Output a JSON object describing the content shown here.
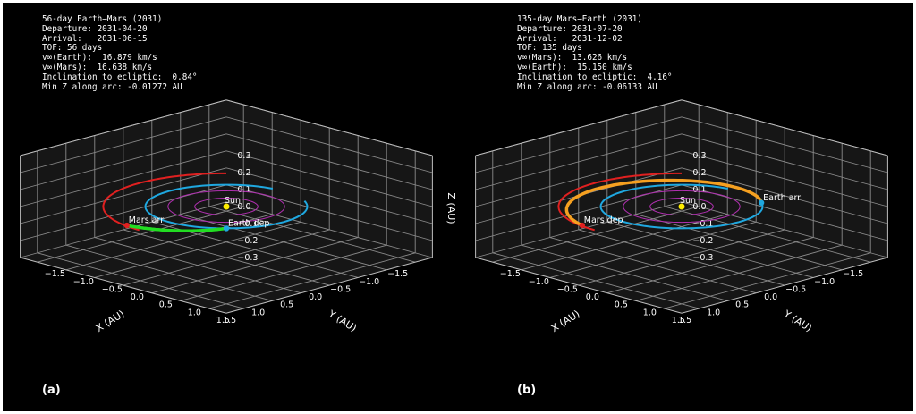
{
  "chart_data": [
    {
      "type": "line",
      "panel_label": "(a)",
      "info_lines": [
        "56-day Earth→Mars (2031)",
        "Departure: 2031-04-20",
        "Arrival:   2031-06-15",
        "TOF: 56 days",
        "v∞(Earth):  16.879 km/s",
        "v∞(Mars):  16.638 km/s",
        "Inclination to ecliptic:  0.84°",
        "Min Z along arc: -0.01272 AU"
      ],
      "xlabel": "X (AU)",
      "ylabel": "Y (AU)",
      "zlabel": "Z (AU)",
      "xlim": [
        -1.8,
        1.8
      ],
      "ylim": [
        -1.8,
        1.8
      ],
      "zlim": [
        -0.3,
        0.3
      ],
      "x_ticks": [
        "−1.5",
        "−1.0",
        "−0.5",
        "0.0",
        "0.5",
        "1.0",
        "1.5"
      ],
      "y_ticks": [
        "−1.5",
        "−1.0",
        "−0.5",
        "0.0",
        "0.5",
        "1.0",
        "1.5"
      ],
      "z_ticks": [
        "0.3",
        "0.2",
        "0.1",
        "0.0",
        "−0.1",
        "−0.2",
        "−0.3"
      ],
      "show_zlabel": true,
      "grid": true,
      "rings": [
        {
          "name": "ring-inner",
          "radius": 0.39,
          "color": "#b030b0"
        },
        {
          "name": "ring-outer",
          "radius": 0.72,
          "color": "#b030b0"
        }
      ],
      "sun": {
        "label": "Sun",
        "x": 0,
        "y": 0,
        "z": 0,
        "color": "#ffee00"
      },
      "earth_orbit": {
        "color": "#1fa8e0",
        "radius": 1.0,
        "start_deg": -60,
        "end_deg": 260
      },
      "mars_orbit": {
        "color": "#e02020",
        "radius": 1.52,
        "start_deg": 90,
        "end_deg": 225
      },
      "transfer_arc": {
        "color": "#22dd22",
        "start_deg": 45,
        "end_deg": 100,
        "r_start": 1.0,
        "r_end": 1.5
      },
      "markers": [
        {
          "label": "Earth dep",
          "deg": 45,
          "r": 1.0,
          "color": "#1fa8e0"
        },
        {
          "label": "Mars arr",
          "deg": 100,
          "r": 1.5,
          "color": "#e02020"
        }
      ]
    },
    {
      "type": "line",
      "panel_label": "(b)",
      "info_lines": [
        "135-day Mars→Earth (2031)",
        "Departure: 2031-07-20",
        "Arrival:   2031-12-02",
        "TOF: 135 days",
        "v∞(Mars):  13.626 km/s",
        "v∞(Earth):  15.150 km/s",
        "Inclination to ecliptic:  4.16°",
        "Min Z along arc: -0.06133 AU"
      ],
      "xlabel": "X (AU)",
      "ylabel": "Y (AU)",
      "zlabel": "",
      "xlim": [
        -1.8,
        1.8
      ],
      "ylim": [
        -1.8,
        1.8
      ],
      "zlim": [
        -0.3,
        0.3
      ],
      "x_ticks": [
        "−1.5",
        "−1.0",
        "−0.5",
        "0.0",
        "0.5",
        "1.0",
        "1.5"
      ],
      "y_ticks": [
        "−1.5",
        "−1.0",
        "−0.5",
        "0.0",
        "0.5",
        "1.0",
        "1.5"
      ],
      "z_ticks": [
        "0.3",
        "0.2",
        "0.1",
        "0.0",
        "−0.1",
        "−0.2",
        "−0.3"
      ],
      "show_zlabel": false,
      "grid": true,
      "rings": [
        {
          "name": "ring-inner",
          "radius": 0.39,
          "color": "#b030b0"
        },
        {
          "name": "ring-outer",
          "radius": 0.72,
          "color": "#b030b0"
        }
      ],
      "sun": {
        "label": "Sun",
        "x": 0,
        "y": 0,
        "z": 0,
        "color": "#ffee00"
      },
      "earth_orbit": {
        "color": "#1fa8e0",
        "radius": 1.0,
        "start_deg": -60,
        "end_deg": 260
      },
      "mars_orbit": {
        "color": "#e02020",
        "radius": 1.52,
        "start_deg": 90,
        "end_deg": 225
      },
      "transfer_arc": {
        "color": "#f5a020",
        "start_deg": 100,
        "end_deg": 305,
        "r_start": 1.5,
        "r_end": 1.0
      },
      "markers": [
        {
          "label": "Mars dep",
          "deg": 100,
          "r": 1.5,
          "color": "#e02020"
        },
        {
          "label": "Earth arr",
          "deg": 305,
          "r": 1.0,
          "color": "#1fa8e0"
        }
      ]
    }
  ]
}
